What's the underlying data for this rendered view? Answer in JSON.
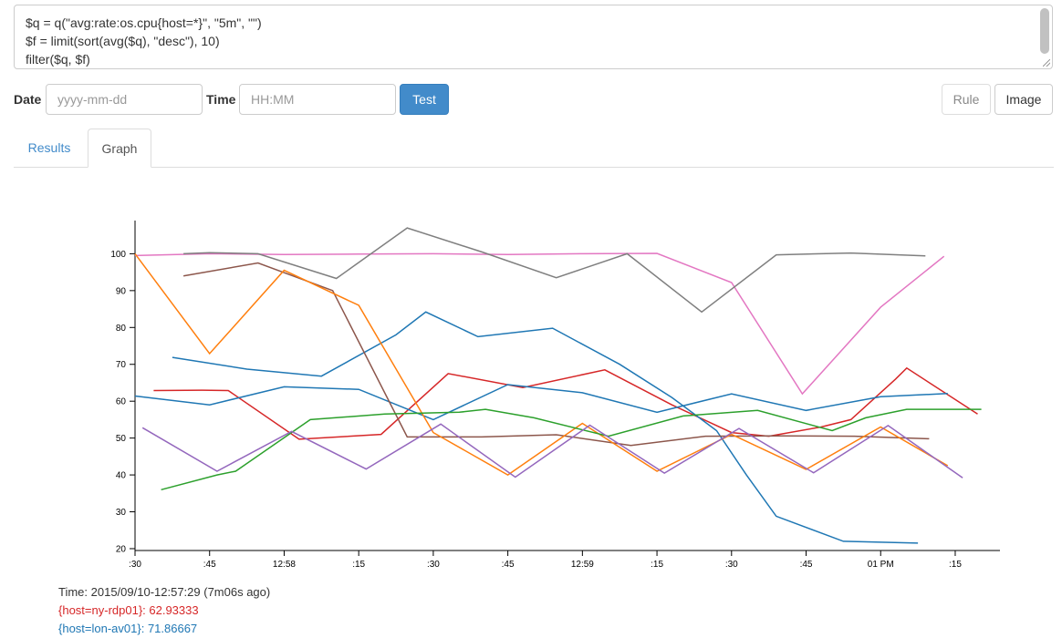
{
  "editor": {
    "lines": [
      "$q = q(\"avg:rate:os.cpu{host=*}\", \"5m\", \"\")",
      "$f = limit(sort(avg($q), \"desc\"), 10)",
      "filter($q, $f)"
    ]
  },
  "controls": {
    "date_label": "Date",
    "date_placeholder": "yyyy-mm-dd",
    "time_label": "Time",
    "time_placeholder": "HH:MM",
    "test_label": "Test",
    "rule_label": "Rule",
    "image_label": "Image"
  },
  "tabs": [
    {
      "label": "Results",
      "active": false
    },
    {
      "label": "Graph",
      "active": true
    }
  ],
  "chart_data": {
    "type": "line",
    "x_ticks": [
      ":30",
      ":45",
      "12:58",
      ":15",
      ":30",
      ":45",
      "12:59",
      ":15",
      ":30",
      ":45",
      "01 PM",
      ":15"
    ],
    "y_ticks": [
      20,
      30,
      40,
      50,
      60,
      70,
      80,
      90,
      100
    ],
    "ylim": [
      19.5,
      109
    ],
    "xlim": [
      0,
      11.6
    ],
    "series": [
      {
        "color": "#d62728",
        "points": [
          [
            0.25,
            62.9
          ],
          [
            0.9,
            63
          ],
          [
            1.25,
            62.9
          ],
          [
            2.2,
            49.7
          ],
          [
            3.3,
            51
          ],
          [
            4.2,
            67.5
          ],
          [
            5.2,
            63.7
          ],
          [
            6.3,
            68.5
          ],
          [
            7.2,
            59
          ],
          [
            8,
            51.5
          ],
          [
            8.5,
            50.5
          ],
          [
            9.2,
            53
          ],
          [
            9.6,
            55
          ],
          [
            10.2,
            66
          ],
          [
            10.35,
            69
          ],
          [
            11.3,
            56.5
          ]
        ]
      },
      {
        "color": "#1f77b4",
        "points": [
          [
            0.5,
            71.9
          ],
          [
            1.5,
            68.7
          ],
          [
            2.5,
            66.8
          ],
          [
            3.5,
            78
          ],
          [
            3.9,
            84.2
          ],
          [
            4.6,
            77.5
          ],
          [
            5.6,
            79.8
          ],
          [
            6.5,
            70
          ],
          [
            7.2,
            61
          ],
          [
            7.8,
            52
          ],
          [
            8.2,
            40
          ],
          [
            8.6,
            28.8
          ],
          [
            9.5,
            22
          ],
          [
            10.5,
            21.5
          ]
        ]
      },
      {
        "color": "#1f77b4",
        "points": [
          [
            0,
            61.4
          ],
          [
            1,
            59
          ],
          [
            2,
            63.9
          ],
          [
            3,
            63.2
          ],
          [
            4,
            55
          ],
          [
            5,
            64.5
          ],
          [
            6,
            62.3
          ],
          [
            7,
            57
          ],
          [
            8,
            62
          ],
          [
            9,
            57.5
          ],
          [
            10,
            61.2
          ],
          [
            10.9,
            62.1
          ]
        ]
      },
      {
        "color": "#e377c2",
        "points": [
          [
            0,
            99.5
          ],
          [
            1,
            100
          ],
          [
            2,
            99.8
          ],
          [
            3,
            99.9
          ],
          [
            4,
            100
          ],
          [
            5,
            99.8
          ],
          [
            6,
            100
          ],
          [
            7,
            100.1
          ],
          [
            8,
            92.2
          ],
          [
            8.95,
            62
          ],
          [
            10,
            85.5
          ],
          [
            10.85,
            99.3
          ]
        ]
      },
      {
        "color": "#7f7f7f",
        "points": [
          [
            0.65,
            100
          ],
          [
            1,
            100.3
          ],
          [
            1.65,
            100
          ],
          [
            2.7,
            93.3
          ],
          [
            3.65,
            107
          ],
          [
            4.65,
            100.5
          ],
          [
            5.65,
            93.5
          ],
          [
            6.6,
            100
          ],
          [
            7.6,
            84.2
          ],
          [
            8.6,
            99.7
          ],
          [
            9.6,
            100.2
          ],
          [
            10.6,
            99.4
          ]
        ]
      },
      {
        "color": "#8c564b",
        "points": [
          [
            0.65,
            94
          ],
          [
            1.65,
            97.5
          ],
          [
            2.65,
            90
          ],
          [
            3.65,
            50.3
          ],
          [
            4.65,
            50.3
          ],
          [
            5.65,
            50.9
          ],
          [
            6.65,
            48
          ],
          [
            7.65,
            50.5
          ],
          [
            8.65,
            50.6
          ],
          [
            9.65,
            50.5
          ],
          [
            10.65,
            49.8
          ]
        ]
      },
      {
        "color": "#ff7f0e",
        "points": [
          [
            0,
            100
          ],
          [
            1,
            72.9
          ],
          [
            2,
            95.5
          ],
          [
            3,
            86
          ],
          [
            4,
            51.5
          ],
          [
            5,
            40
          ],
          [
            6,
            54
          ],
          [
            7,
            41
          ],
          [
            8,
            51
          ],
          [
            9,
            41.5
          ],
          [
            10,
            53
          ],
          [
            10.9,
            42.5
          ]
        ]
      },
      {
        "color": "#2ca02c",
        "points": [
          [
            0.35,
            36
          ],
          [
            1.1,
            40
          ],
          [
            1.35,
            41
          ],
          [
            2.35,
            55
          ],
          [
            3.35,
            56.5
          ],
          [
            4.35,
            57
          ],
          [
            4.7,
            57.8
          ],
          [
            5.35,
            55.5
          ],
          [
            6.35,
            50.5
          ],
          [
            7.35,
            56
          ],
          [
            8.35,
            57.5
          ],
          [
            9.35,
            52
          ],
          [
            9.8,
            55.5
          ],
          [
            10.35,
            57.8
          ],
          [
            11.35,
            57.8
          ]
        ]
      },
      {
        "color": "#9467bd",
        "points": [
          [
            0.1,
            52.8
          ],
          [
            1.1,
            41
          ],
          [
            2.1,
            51.8
          ],
          [
            3.1,
            41.6
          ],
          [
            4.1,
            53.8
          ],
          [
            5.1,
            39.4
          ],
          [
            6.1,
            53.5
          ],
          [
            7.1,
            40.5
          ],
          [
            8.1,
            52.6
          ],
          [
            9.1,
            40.6
          ],
          [
            10.1,
            53.4
          ],
          [
            11.1,
            39.2
          ]
        ]
      }
    ]
  },
  "legend": {
    "time": "Time: 2015/09/10-12:57:29 (7m06s ago)",
    "entries": [
      {
        "text": "{host=ny-rdp01}: 62.93333",
        "color": "#d62728"
      },
      {
        "text": "{host=lon-av01}: 71.86667",
        "color": "#1f77b4"
      }
    ]
  }
}
